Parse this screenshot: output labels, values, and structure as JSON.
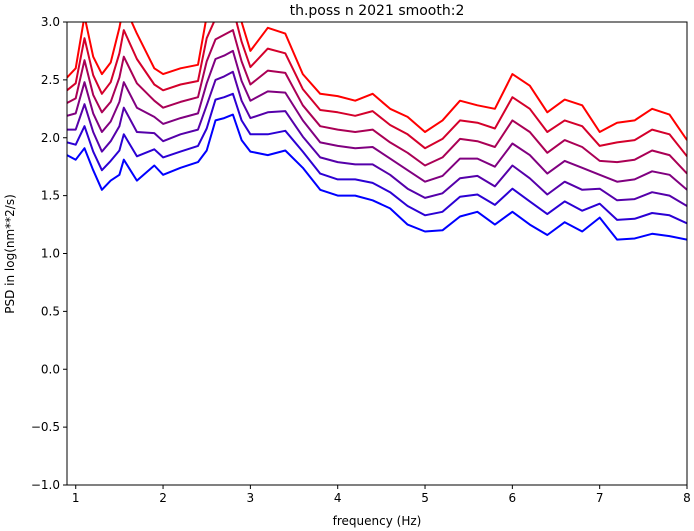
{
  "chart_data": {
    "type": "line",
    "title": "th.poss n 2021 smooth:2",
    "xlabel": "frequency (Hz)",
    "ylabel": "PSD in log(nm**2/s)",
    "xlim": [
      0.9,
      8
    ],
    "ylim": [
      -1.0,
      3.0
    ],
    "xticks": [
      1,
      2,
      3,
      4,
      5,
      6,
      7,
      8
    ],
    "xtick_labels": [
      "1",
      "2",
      "3",
      "4",
      "5",
      "6",
      "7",
      "8"
    ],
    "yticks": [
      -1.0,
      -0.5,
      0.0,
      0.5,
      1.0,
      1.5,
      2.0,
      2.5,
      3.0
    ],
    "ytick_labels": [
      "−1.0",
      "−0.5",
      "0.0",
      "0.5",
      "1.0",
      "1.5",
      "2.0",
      "2.5",
      "3.0"
    ],
    "grid": false,
    "x": [
      0.9,
      1.0,
      1.1,
      1.2,
      1.3,
      1.4,
      1.5,
      1.55,
      1.7,
      1.9,
      2.0,
      2.2,
      2.4,
      2.5,
      2.6,
      2.7,
      2.8,
      2.9,
      3.0,
      3.2,
      3.4,
      3.6,
      3.8,
      4.0,
      4.2,
      4.4,
      4.6,
      4.8,
      5.0,
      5.2,
      5.4,
      5.6,
      5.8,
      6.0,
      6.2,
      6.4,
      6.6,
      6.8,
      7.0,
      7.2,
      7.4,
      7.6,
      7.8,
      8.0
    ],
    "series": [
      {
        "color": "#ff0000",
        "values": [
          2.52,
          2.6,
          3.05,
          2.7,
          2.55,
          2.65,
          2.95,
          3.15,
          2.9,
          2.6,
          2.55,
          2.6,
          2.63,
          3.05,
          3.2,
          3.25,
          3.3,
          3.0,
          2.75,
          2.95,
          2.9,
          2.55,
          2.38,
          2.36,
          2.32,
          2.38,
          2.25,
          2.18,
          2.05,
          2.15,
          2.32,
          2.28,
          2.25,
          2.55,
          2.45,
          2.22,
          2.33,
          2.28,
          2.05,
          2.13,
          2.15,
          2.25,
          2.2,
          1.98
        ]
      },
      {
        "color": "#d4002b",
        "values": [
          2.41,
          2.47,
          2.86,
          2.54,
          2.38,
          2.48,
          2.73,
          2.93,
          2.68,
          2.46,
          2.41,
          2.46,
          2.49,
          2.86,
          3.03,
          3.07,
          3.12,
          2.83,
          2.61,
          2.77,
          2.73,
          2.42,
          2.24,
          2.22,
          2.19,
          2.23,
          2.11,
          2.03,
          1.91,
          1.99,
          2.15,
          2.13,
          2.08,
          2.35,
          2.25,
          2.05,
          2.15,
          2.1,
          1.93,
          1.96,
          1.98,
          2.07,
          2.03,
          1.84
        ]
      },
      {
        "color": "#aa0055",
        "values": [
          2.3,
          2.34,
          2.67,
          2.37,
          2.22,
          2.31,
          2.52,
          2.7,
          2.47,
          2.32,
          2.26,
          2.31,
          2.35,
          2.66,
          2.85,
          2.89,
          2.93,
          2.66,
          2.46,
          2.58,
          2.56,
          2.28,
          2.1,
          2.07,
          2.05,
          2.07,
          1.96,
          1.87,
          1.76,
          1.83,
          1.99,
          1.97,
          1.92,
          2.15,
          2.05,
          1.87,
          1.98,
          1.92,
          1.8,
          1.79,
          1.81,
          1.89,
          1.85,
          1.69
        ]
      },
      {
        "color": "#800080",
        "values": [
          2.19,
          2.21,
          2.48,
          2.21,
          2.05,
          2.14,
          2.31,
          2.48,
          2.26,
          2.18,
          2.12,
          2.17,
          2.21,
          2.47,
          2.68,
          2.71,
          2.75,
          2.49,
          2.32,
          2.4,
          2.39,
          2.15,
          1.96,
          1.93,
          1.91,
          1.92,
          1.82,
          1.72,
          1.62,
          1.67,
          1.82,
          1.82,
          1.75,
          1.95,
          1.85,
          1.69,
          1.8,
          1.74,
          1.68,
          1.62,
          1.64,
          1.71,
          1.68,
          1.55
        ]
      },
      {
        "color": "#5500aa",
        "values": [
          2.07,
          2.07,
          2.29,
          2.05,
          1.88,
          1.97,
          2.1,
          2.26,
          2.05,
          2.04,
          1.97,
          2.03,
          2.07,
          2.28,
          2.5,
          2.53,
          2.57,
          2.32,
          2.17,
          2.22,
          2.23,
          2.01,
          1.83,
          1.79,
          1.77,
          1.77,
          1.68,
          1.56,
          1.48,
          1.52,
          1.65,
          1.67,
          1.58,
          1.76,
          1.65,
          1.51,
          1.62,
          1.55,
          1.56,
          1.46,
          1.47,
          1.53,
          1.5,
          1.41
        ]
      },
      {
        "color": "#2b00d4",
        "values": [
          1.96,
          1.94,
          2.1,
          1.88,
          1.72,
          1.8,
          1.89,
          2.03,
          1.84,
          1.9,
          1.83,
          1.88,
          1.93,
          2.08,
          2.33,
          2.35,
          2.38,
          2.15,
          2.03,
          2.03,
          2.06,
          1.88,
          1.69,
          1.64,
          1.64,
          1.61,
          1.53,
          1.41,
          1.33,
          1.36,
          1.49,
          1.51,
          1.42,
          1.56,
          1.45,
          1.34,
          1.45,
          1.37,
          1.43,
          1.29,
          1.3,
          1.35,
          1.33,
          1.26
        ]
      },
      {
        "color": "#0000ff",
        "values": [
          1.85,
          1.81,
          1.91,
          1.72,
          1.55,
          1.63,
          1.68,
          1.81,
          1.63,
          1.76,
          1.68,
          1.74,
          1.79,
          1.89,
          2.15,
          2.17,
          2.2,
          1.98,
          1.88,
          1.85,
          1.89,
          1.74,
          1.55,
          1.5,
          1.5,
          1.46,
          1.39,
          1.25,
          1.19,
          1.2,
          1.32,
          1.36,
          1.25,
          1.36,
          1.25,
          1.16,
          1.27,
          1.19,
          1.31,
          1.12,
          1.13,
          1.17,
          1.15,
          1.12
        ]
      }
    ]
  }
}
